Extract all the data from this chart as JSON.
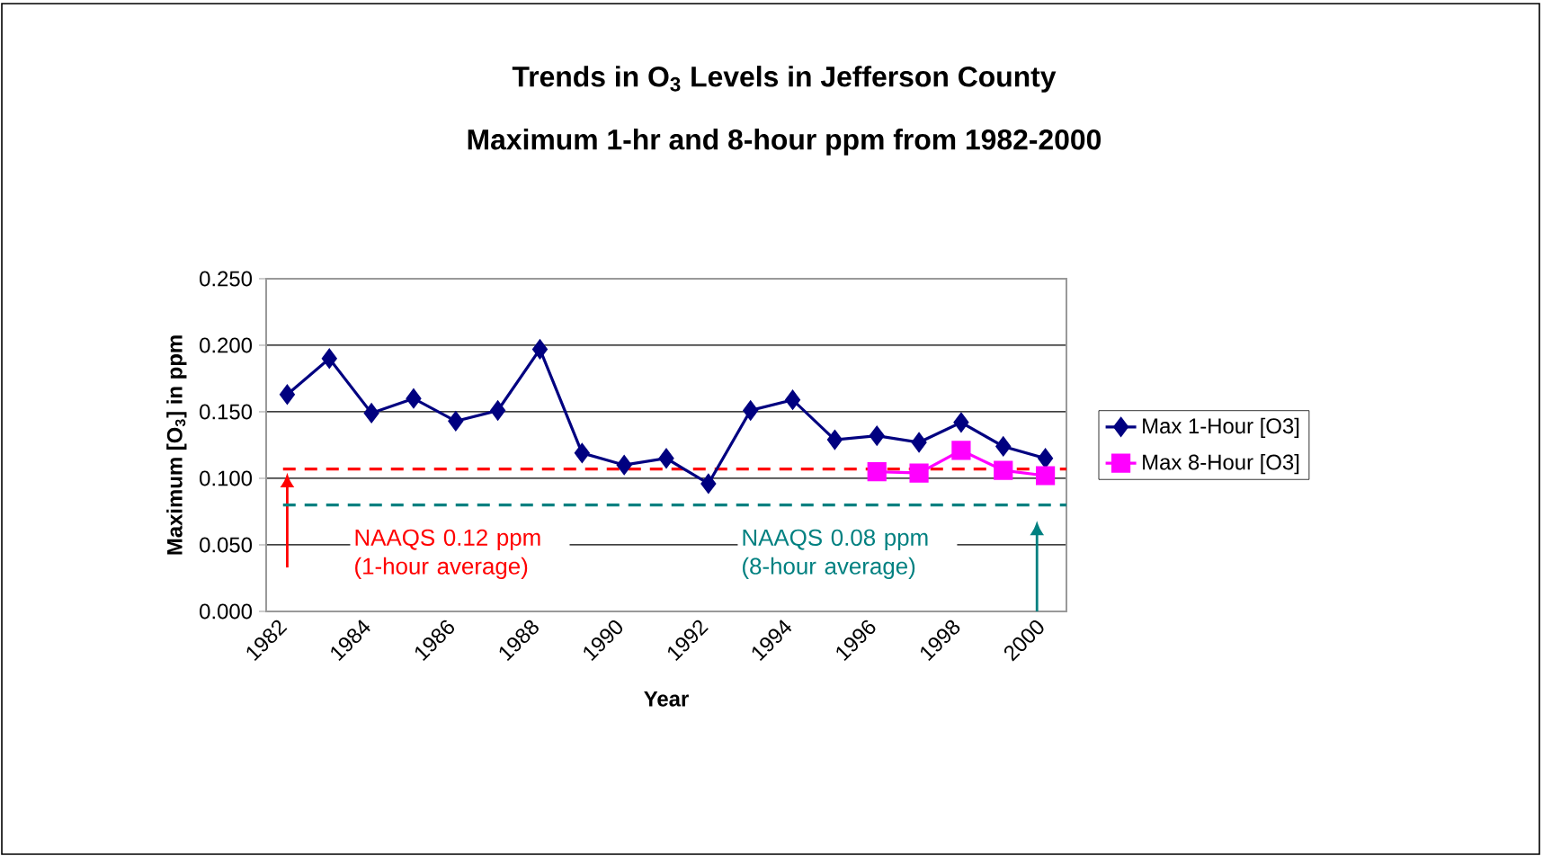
{
  "chart_data": {
    "type": "line",
    "title": "Trends in O$_{3}$ Levels in Jefferson County",
    "subtitle": "Maximum 1-hr and 8-hour ppm from 1982-2000",
    "xlabel": "Year",
    "ylabel": "Maximum [O$_{3}$] in ppm",
    "categories": [
      "1982",
      null,
      "1984",
      null,
      "1986",
      null,
      "1988",
      null,
      "1990",
      null,
      "1992",
      null,
      "1994",
      null,
      "1996",
      null,
      "1998",
      null,
      "2000"
    ],
    "series": [
      {
        "name": "Max 1-Hour [O3]",
        "color": "#000080",
        "marker": "diamond",
        "values": [
          0.163,
          0.19,
          0.149,
          0.16,
          0.143,
          0.151,
          0.197,
          0.119,
          0.11,
          0.115,
          0.096,
          0.151,
          0.159,
          0.129,
          0.132,
          0.127,
          0.142,
          0.124,
          0.115
        ]
      },
      {
        "name": "Max 8-Hour [O3]",
        "color": "#ff00ff",
        "marker": "square",
        "values": [
          null,
          null,
          null,
          null,
          null,
          null,
          null,
          null,
          null,
          null,
          null,
          null,
          null,
          null,
          0.105,
          0.104,
          0.121,
          0.106,
          0.102
        ]
      }
    ],
    "ylim": [
      0,
      0.25
    ],
    "yticks": [
      {
        "value": 0,
        "label": "0.000"
      },
      {
        "value": 0.05,
        "label": "0.050"
      },
      {
        "value": 0.1,
        "label": "0.100"
      },
      {
        "value": 0.15,
        "label": "0.150"
      },
      {
        "value": 0.2,
        "label": "0.200"
      },
      {
        "value": 0.25,
        "label": "0.250"
      }
    ],
    "ref_lines": [
      {
        "axis": "y",
        "value": 0.107,
        "label": "NAAQS 0.12 ppm (1-hour average)",
        "color": "#ff0000",
        "line_style": "dashed"
      },
      {
        "axis": "y",
        "value": 0.08,
        "label": "NAAQS 0.08 ppm (8-hour average)",
        "color": "#008080",
        "line_style": "dashed"
      }
    ],
    "grid": "y",
    "legend": "right",
    "line_style": "solid"
  }
}
